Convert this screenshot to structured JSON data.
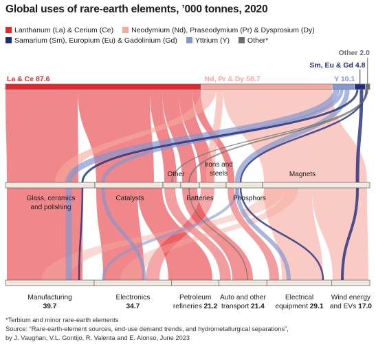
{
  "title": "Global uses of rare-earth elements, ’000 tonnes, 2020",
  "colors": {
    "la_ce": "#e3262b",
    "nd_pr_dy": "#f5a89d",
    "sm_eu_gd": "#1f2c7a",
    "y": "#8597cf",
    "other": "#6d6d6d"
  },
  "chart_data": {
    "type": "sankey",
    "sources": [
      {
        "id": "la_ce",
        "label": "La & Ce",
        "value": 87.6
      },
      {
        "id": "nd_pr_dy",
        "label": "Nd, Pr & Dy",
        "value": 58.7
      },
      {
        "id": "y",
        "label": "Y",
        "value": 10.1
      },
      {
        "id": "sm_eu_gd",
        "label": "Sm, Eu & Gd",
        "value": 4.8
      },
      {
        "id": "other",
        "label": "Other",
        "value": 2.0
      }
    ],
    "legend": [
      {
        "id": "la_ce",
        "label": "Lanthanum (La) & Cerium (Ce)"
      },
      {
        "id": "nd_pr_dy",
        "label": "Neodymium (Nd), Praseodymium (Pr) & Dysprosium (Dy)"
      },
      {
        "id": "sm_eu_gd",
        "label": "Samarium (Sm), Europium (Eu) & Gadolinium (Gd)"
      },
      {
        "id": "y",
        "label": "Yttrium (Y)"
      },
      {
        "id": "other",
        "label": "Other*"
      }
    ],
    "applications": [
      {
        "label": "Glass, ceramics and polishing"
      },
      {
        "label": "Catalysts"
      },
      {
        "label": "Other"
      },
      {
        "label": "Batteries"
      },
      {
        "label": "Irons and steels"
      },
      {
        "label": "Phosphors"
      },
      {
        "label": "Magnets"
      }
    ],
    "sectors": [
      {
        "name": "Manufacturing",
        "value": 39.7
      },
      {
        "name": "Electronics",
        "value": 34.7
      },
      {
        "name": "Petroleum refineries",
        "value": 21.2
      },
      {
        "name": "Auto and other transport",
        "value": 21.4
      },
      {
        "name": "Electrical equipment",
        "value": 29.1
      },
      {
        "name": "Wind energy and EVs",
        "value": 17.0
      }
    ]
  },
  "footnote": "*Terbium and minor rare-earth elements",
  "source_lines": [
    "Source: “Rare-earth-element sources, end-use demand trends, and hydrometallurgical separations”,",
    "by J. Vaughan, V.L. Gontijo, R. Valenta and E. Alonso, June 2023"
  ]
}
